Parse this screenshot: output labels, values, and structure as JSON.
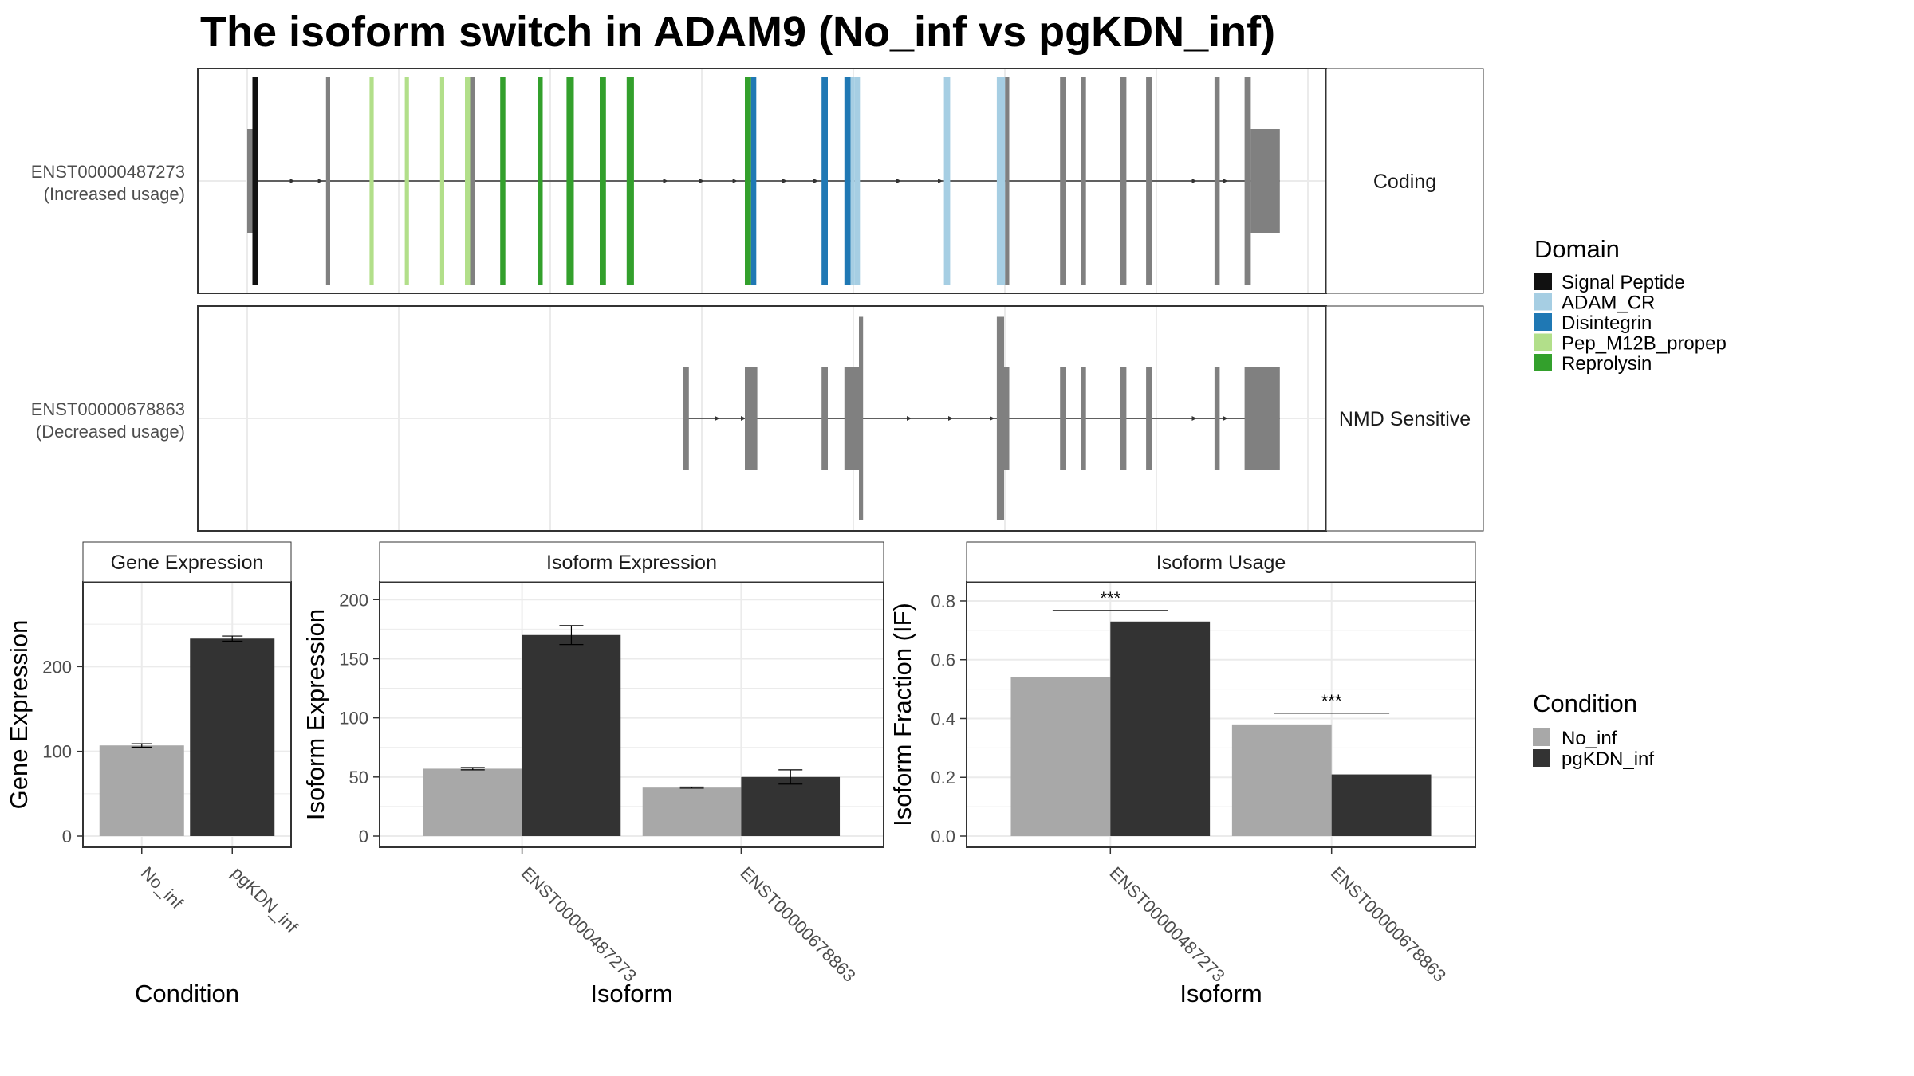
{
  "title": "The isoform switch in ADAM9 (No_inf vs pgKDN_inf)",
  "colors": {
    "No_inf": "#a8a8a8",
    "pgKDN_inf": "#333333",
    "intron": "#333333",
    "noncoding": "#808080",
    "Signal Peptide": "#111111",
    "ADAM_CR": "#a6cee3",
    "Disintegrin": "#1f78b4",
    "Pep_M12B_propep": "#b2df8a",
    "Reprolysin": "#33a02c"
  },
  "legends": {
    "domain_title": "Domain",
    "domain_items": [
      "Signal Peptide",
      "ADAM_CR",
      "Disintegrin",
      "Pep_M12B_propep",
      "Reprolysin"
    ],
    "condition_title": "Condition",
    "condition_items": [
      "No_inf",
      "pgKDN_inf"
    ]
  },
  "transcripts": [
    {
      "id": "ENST00000487273",
      "usage": "(Increased usage)",
      "category": "Coding",
      "exons": [
        {
          "start": 0.0,
          "end": 0.5,
          "type": "utr"
        },
        {
          "start": 0.5,
          "end": 1.0,
          "type": "cds",
          "domain": "Signal Peptide"
        },
        {
          "start": 7.6,
          "end": 8.0,
          "type": "cds"
        },
        {
          "start": 11.8,
          "end": 12.2,
          "type": "cds",
          "domain": "Pep_M12B_propep"
        },
        {
          "start": 15.2,
          "end": 15.6,
          "type": "cds",
          "domain": "Pep_M12B_propep"
        },
        {
          "start": 18.6,
          "end": 19.0,
          "type": "cds",
          "domain": "Pep_M12B_propep"
        },
        {
          "start": 21.0,
          "end": 21.5,
          "type": "cds",
          "domain": "Pep_M12B_propep"
        },
        {
          "start": 21.5,
          "end": 22.0,
          "type": "cds"
        },
        {
          "start": 24.4,
          "end": 24.9,
          "type": "cds",
          "domain": "Reprolysin"
        },
        {
          "start": 28.0,
          "end": 28.5,
          "type": "cds",
          "domain": "Reprolysin"
        },
        {
          "start": 30.8,
          "end": 31.5,
          "type": "cds",
          "domain": "Reprolysin"
        },
        {
          "start": 34.0,
          "end": 34.6,
          "type": "cds",
          "domain": "Reprolysin"
        },
        {
          "start": 36.6,
          "end": 37.3,
          "type": "cds",
          "domain": "Reprolysin"
        },
        {
          "start": 48.0,
          "end": 48.6,
          "type": "cds",
          "domain": "Reprolysin"
        },
        {
          "start": 48.6,
          "end": 49.1,
          "type": "cds",
          "domain": "Disintegrin"
        },
        {
          "start": 55.4,
          "end": 56.0,
          "type": "cds",
          "domain": "Disintegrin"
        },
        {
          "start": 57.6,
          "end": 58.2,
          "type": "cds",
          "domain": "Disintegrin"
        },
        {
          "start": 58.2,
          "end": 58.6,
          "type": "cds",
          "domain": "ADAM_CR"
        },
        {
          "start": 58.6,
          "end": 59.1,
          "type": "cds",
          "domain": "ADAM_CR"
        },
        {
          "start": 67.2,
          "end": 67.8,
          "type": "cds",
          "domain": "ADAM_CR"
        },
        {
          "start": 72.3,
          "end": 73.1,
          "type": "cds",
          "domain": "ADAM_CR"
        },
        {
          "start": 73.1,
          "end": 73.5,
          "type": "cds"
        },
        {
          "start": 78.4,
          "end": 79.0,
          "type": "cds"
        },
        {
          "start": 80.4,
          "end": 80.9,
          "type": "cds"
        },
        {
          "start": 84.2,
          "end": 84.8,
          "type": "cds"
        },
        {
          "start": 86.7,
          "end": 87.3,
          "type": "cds"
        },
        {
          "start": 93.3,
          "end": 93.8,
          "type": "cds"
        },
        {
          "start": 96.2,
          "end": 96.8,
          "type": "cds"
        },
        {
          "start": 96.8,
          "end": 99.6,
          "type": "utr"
        }
      ],
      "arrows": [
        4.5,
        7.2,
        40.5,
        44.0,
        47.2,
        52.0,
        55.0,
        63.0,
        67.0,
        91.5,
        94.5
      ]
    },
    {
      "id": "ENST00000678863",
      "usage": "(Decreased usage)",
      "category": "NMD Sensitive",
      "exons": [
        {
          "start": 42.0,
          "end": 42.6,
          "type": "cds"
        },
        {
          "start": 48.0,
          "end": 49.2,
          "type": "cds"
        },
        {
          "start": 55.4,
          "end": 56.0,
          "type": "cds"
        },
        {
          "start": 57.6,
          "end": 59.0,
          "type": "cds"
        },
        {
          "start": 59.0,
          "end": 59.4,
          "type": "tall"
        },
        {
          "start": 72.3,
          "end": 73.0,
          "type": "tall"
        },
        {
          "start": 73.0,
          "end": 73.5,
          "type": "cds"
        },
        {
          "start": 78.4,
          "end": 79.0,
          "type": "cds"
        },
        {
          "start": 80.4,
          "end": 80.9,
          "type": "cds"
        },
        {
          "start": 84.2,
          "end": 84.8,
          "type": "cds"
        },
        {
          "start": 86.7,
          "end": 87.3,
          "type": "cds"
        },
        {
          "start": 93.3,
          "end": 93.8,
          "type": "cds"
        },
        {
          "start": 96.2,
          "end": 99.6,
          "type": "utr"
        }
      ],
      "arrows": [
        45.5,
        48.0,
        64.0,
        68.0,
        72.0,
        91.5,
        94.5
      ]
    }
  ],
  "chart_data": [
    {
      "type": "bar",
      "title": "Gene Expression",
      "xlabel": "Condition",
      "ylabel": "Gene Expression",
      "ylim": [
        0,
        300
      ],
      "yticks": [
        0,
        100,
        200
      ],
      "categories": [
        "No_inf",
        "pgKDN_inf"
      ],
      "series": [
        {
          "name": "No_inf",
          "values": [
            107,
            null
          ]
        },
        {
          "name": "pgKDN_inf",
          "values": [
            null,
            233
          ]
        }
      ],
      "errors": [
        {
          "low": 105,
          "high": 109
        },
        {
          "low": 230,
          "high": 236
        }
      ],
      "grid": true
    },
    {
      "type": "bar",
      "title": "Isoform Expression",
      "xlabel": "Isoform",
      "ylabel": "Isoform Expression",
      "ylim": [
        0,
        200
      ],
      "yticks": [
        0,
        50,
        100,
        150,
        200
      ],
      "categories": [
        "ENST00000487273",
        "ENST00000678863"
      ],
      "series": [
        {
          "name": "No_inf",
          "values": [
            57,
            41
          ]
        },
        {
          "name": "pgKDN_inf",
          "values": [
            170,
            50
          ]
        }
      ],
      "errors": [
        [
          {
            "low": 56,
            "high": 58
          },
          {
            "low": 162,
            "high": 178
          }
        ],
        [
          {
            "low": 40.5,
            "high": 41.5
          },
          {
            "low": 44,
            "high": 56
          }
        ]
      ],
      "grid": true
    },
    {
      "type": "bar",
      "title": "Isoform Usage",
      "xlabel": "Isoform",
      "ylabel": "Isoform Fraction (IF)",
      "ylim": [
        0,
        0.8
      ],
      "yticks": [
        "0.0",
        "0.2",
        "0.4",
        "0.6",
        "0.8"
      ],
      "categories": [
        "ENST00000487273",
        "ENST00000678863"
      ],
      "series": [
        {
          "name": "No_inf",
          "values": [
            0.54,
            0.38
          ]
        },
        {
          "name": "pgKDN_inf",
          "values": [
            0.73,
            0.21
          ]
        }
      ],
      "significance": [
        "***",
        "***"
      ],
      "grid": true
    }
  ]
}
